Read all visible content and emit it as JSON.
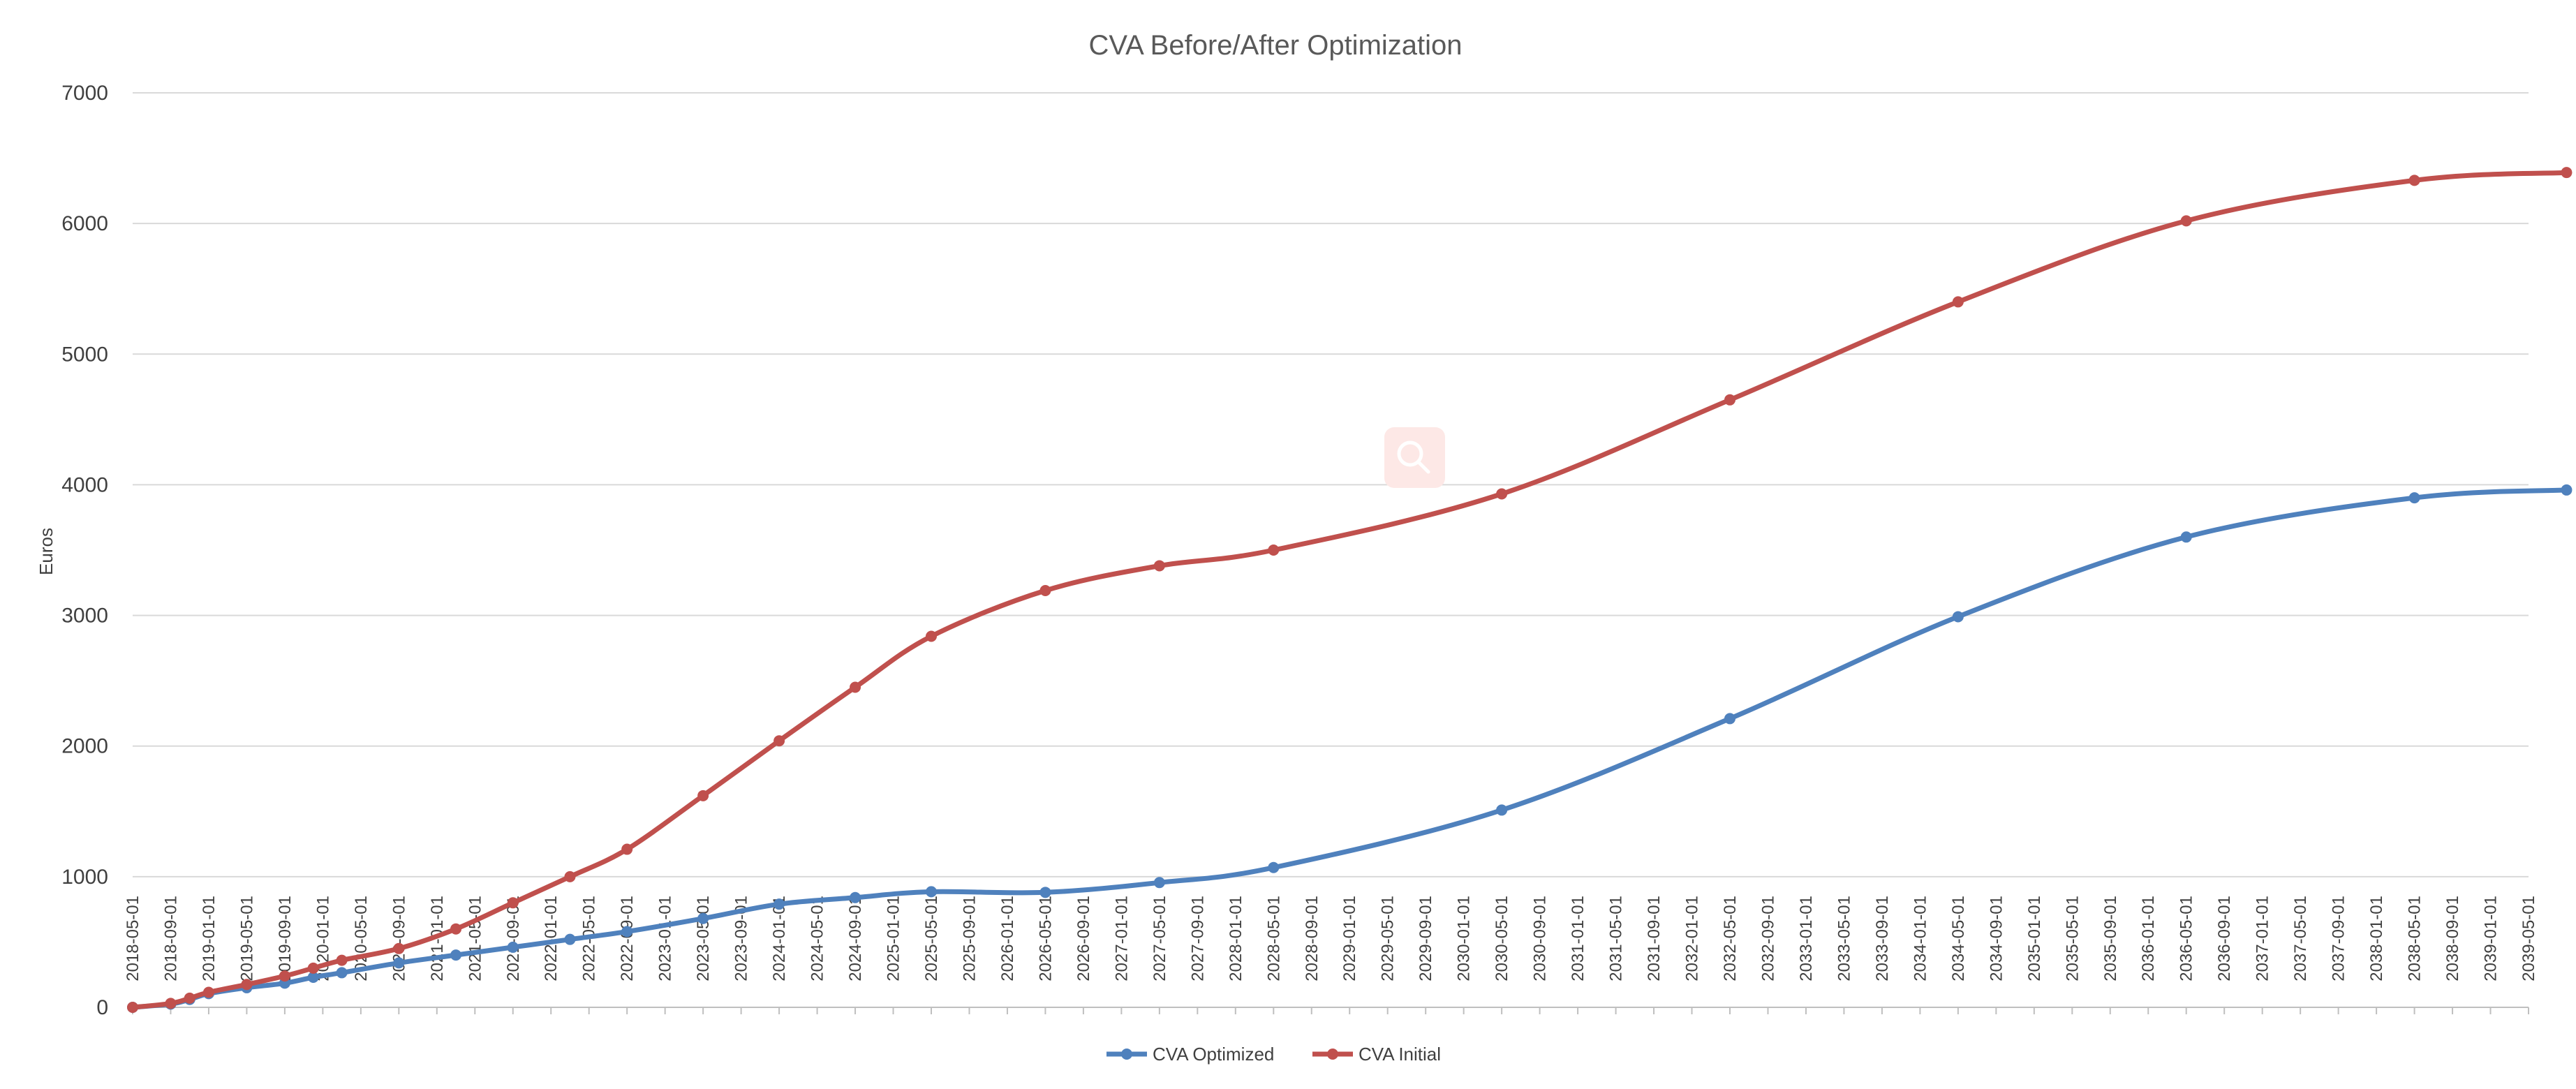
{
  "chart_data": {
    "type": "line",
    "title": "CVA Before/After Optimization",
    "xlabel": "",
    "ylabel": "Euros",
    "ylim": [
      0,
      7000
    ],
    "yticks": [
      0,
      1000,
      2000,
      3000,
      4000,
      5000,
      6000,
      7000
    ],
    "grid": true,
    "legend_position": "bottom",
    "categories": [
      "2018-05-01",
      "2018-09-01",
      "2019-01-01",
      "2019-05-01",
      "2019-09-01",
      "2020-01-01",
      "2020-05-01",
      "2020-09-01",
      "2021-01-01",
      "2021-05-01",
      "2021-09-01",
      "2022-01-01",
      "2022-05-01",
      "2022-09-01",
      "2023-01-01",
      "2023-05-01",
      "2023-09-01",
      "2024-01-01",
      "2024-05-01",
      "2024-09-01",
      "2025-01-01",
      "2025-05-01",
      "2025-09-01",
      "2026-01-01",
      "2026-05-01",
      "2026-09-01",
      "2027-01-01",
      "2027-05-01",
      "2027-09-01",
      "2028-01-01",
      "2028-05-01",
      "2028-09-01",
      "2029-01-01",
      "2029-05-01",
      "2029-09-01",
      "2030-01-01",
      "2030-05-01",
      "2030-09-01",
      "2031-01-01",
      "2031-05-01",
      "2031-09-01",
      "2032-01-01",
      "2032-05-01",
      "2032-09-01",
      "2033-01-01",
      "2033-05-01",
      "2033-09-01",
      "2034-01-01",
      "2034-05-01",
      "2034-09-01",
      "2035-01-01",
      "2035-05-01",
      "2035-09-01",
      "2036-01-01",
      "2036-05-01",
      "2036-09-01",
      "2037-01-01",
      "2037-05-01",
      "2037-09-01",
      "2038-01-01",
      "2038-05-01",
      "2038-09-01",
      "2039-01-01",
      "2039-05-01"
    ],
    "series": [
      {
        "name": "CVA Optimized",
        "color": "#4f81bd",
        "points": [
          {
            "x": "2018-05-01",
            "y": 0
          },
          {
            "x": "2018-09-01",
            "y": 25
          },
          {
            "x": "2018-11-01",
            "y": 60
          },
          {
            "x": "2019-01-01",
            "y": 105
          },
          {
            "x": "2019-05-01",
            "y": 150
          },
          {
            "x": "2019-09-01",
            "y": 185
          },
          {
            "x": "2019-12-01",
            "y": 230
          },
          {
            "x": "2020-03-01",
            "y": 265
          },
          {
            "x": "2020-09-01",
            "y": 340
          },
          {
            "x": "2021-03-01",
            "y": 400
          },
          {
            "x": "2021-09-01",
            "y": 460
          },
          {
            "x": "2022-03-01",
            "y": 520
          },
          {
            "x": "2022-09-01",
            "y": 580
          },
          {
            "x": "2023-05-01",
            "y": 680
          },
          {
            "x": "2024-01-01",
            "y": 790
          },
          {
            "x": "2024-09-01",
            "y": 840
          },
          {
            "x": "2025-05-01",
            "y": 885
          },
          {
            "x": "2026-05-01",
            "y": 880
          },
          {
            "x": "2027-05-01",
            "y": 955
          },
          {
            "x": "2028-05-01",
            "y": 1070
          },
          {
            "x": "2030-05-01",
            "y": 1510
          },
          {
            "x": "2032-05-01",
            "y": 2210
          },
          {
            "x": "2034-05-01",
            "y": 2990
          },
          {
            "x": "2036-05-01",
            "y": 3600
          },
          {
            "x": "2038-05-01",
            "y": 3900
          },
          {
            "x": "2039-09-01",
            "y": 3960
          }
        ]
      },
      {
        "name": "CVA Initial",
        "color": "#c0504d",
        "points": [
          {
            "x": "2018-05-01",
            "y": 0
          },
          {
            "x": "2018-09-01",
            "y": 30
          },
          {
            "x": "2018-11-01",
            "y": 70
          },
          {
            "x": "2019-01-01",
            "y": 115
          },
          {
            "x": "2019-05-01",
            "y": 175
          },
          {
            "x": "2019-09-01",
            "y": 240
          },
          {
            "x": "2019-12-01",
            "y": 300
          },
          {
            "x": "2020-03-01",
            "y": 360
          },
          {
            "x": "2020-09-01",
            "y": 450
          },
          {
            "x": "2021-03-01",
            "y": 600
          },
          {
            "x": "2021-09-01",
            "y": 800
          },
          {
            "x": "2022-03-01",
            "y": 1000
          },
          {
            "x": "2022-09-01",
            "y": 1210
          },
          {
            "x": "2023-05-01",
            "y": 1620
          },
          {
            "x": "2024-01-01",
            "y": 2040
          },
          {
            "x": "2024-09-01",
            "y": 2450
          },
          {
            "x": "2025-05-01",
            "y": 2840
          },
          {
            "x": "2026-05-01",
            "y": 3190
          },
          {
            "x": "2027-05-01",
            "y": 3380
          },
          {
            "x": "2028-05-01",
            "y": 3500
          },
          {
            "x": "2030-05-01",
            "y": 3930
          },
          {
            "x": "2032-05-01",
            "y": 4650
          },
          {
            "x": "2034-05-01",
            "y": 5400
          },
          {
            "x": "2036-05-01",
            "y": 6020
          },
          {
            "x": "2038-05-01",
            "y": 6330
          },
          {
            "x": "2039-09-01",
            "y": 6390
          }
        ]
      }
    ]
  },
  "watermark": {
    "icon": "magnifier-icon",
    "color": "#fde8e6"
  }
}
